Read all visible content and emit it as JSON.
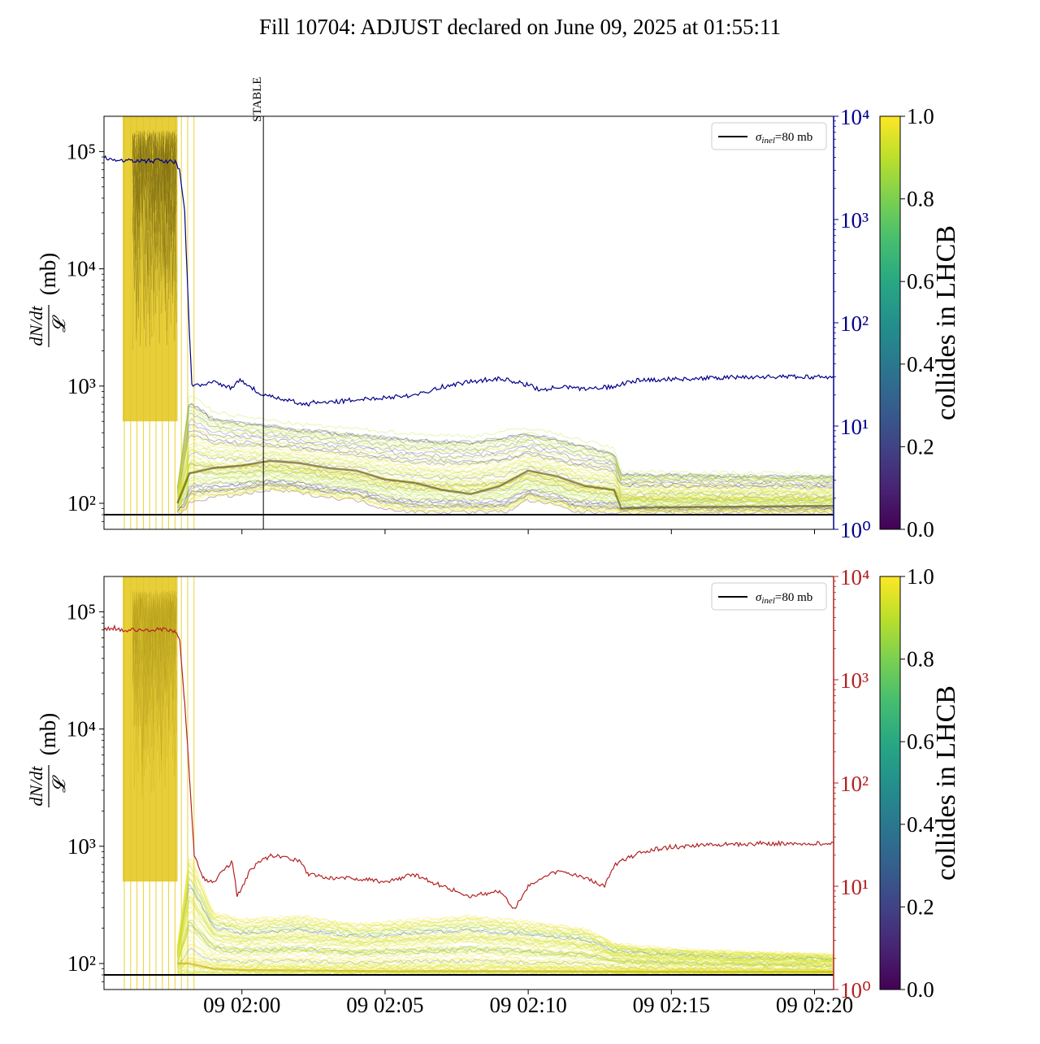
{
  "title": "Fill 10704: ADJUST declared on June 09, 2025 at 01:55:11",
  "chart_data": [
    {
      "type": "line",
      "panel": "top",
      "ylabel_left": "dN/dt / 𝓛 (mb)",
      "ylabel_left_num": "dN/dt",
      "ylabel_left_den": "𝓛",
      "ylabel_left_unit": "(mb)",
      "yscale_left": "log",
      "ylim_left": [
        60,
        200000
      ],
      "yticks_left": [
        {
          "v": 100,
          "label": "10²"
        },
        {
          "v": 1000,
          "label": "10³"
        },
        {
          "v": 10000,
          "label": "10⁴"
        },
        {
          "v": 100000,
          "label": "10⁵"
        }
      ],
      "yscale_right": "log",
      "ylim_right": [
        1,
        10000
      ],
      "right_axis_color": "#00008b",
      "yticks_right": [
        {
          "v": 1,
          "label": "10⁰"
        },
        {
          "v": 10,
          "label": "10¹"
        },
        {
          "v": 100,
          "label": "10²"
        },
        {
          "v": 1000,
          "label": "10³"
        },
        {
          "v": 10000,
          "label": "10⁴"
        }
      ],
      "xlim_minutes": [
        "01:55:11",
        "02:20:40"
      ],
      "x_tick_labels_shown": false,
      "annotation": {
        "label": "STABLE",
        "time": "02:00:45"
      },
      "legend": {
        "label": "σinel=80 mb",
        "sym": "σ",
        "sub": "inel",
        "rest": "=80 mb",
        "placement": "top-right"
      },
      "reference_line": {
        "name": "σinel=80 mb",
        "y": 80,
        "color": "#000000"
      },
      "right_series": {
        "color": "#00008b",
        "points": [
          [
            "01:55:11",
            4000
          ],
          [
            "01:55:30",
            3800
          ],
          [
            "01:56:00",
            3700
          ],
          [
            "01:57:00",
            3700
          ],
          [
            "01:57:40",
            3600
          ],
          [
            "01:57:50",
            3000
          ],
          [
            "01:58:00",
            1200
          ],
          [
            "01:58:05",
            300
          ],
          [
            "01:58:10",
            80
          ],
          [
            "01:58:15",
            25
          ],
          [
            "01:58:30",
            25
          ],
          [
            "01:59:00",
            27
          ],
          [
            "01:59:40",
            23
          ],
          [
            "01:59:50",
            28
          ],
          [
            "02:00:10",
            26
          ],
          [
            "02:00:40",
            20
          ],
          [
            "02:01:30",
            18
          ],
          [
            "02:02:20",
            16
          ],
          [
            "02:02:30",
            17
          ],
          [
            "02:03:00",
            17
          ],
          [
            "02:04:00",
            18
          ],
          [
            "02:05:00",
            19
          ],
          [
            "02:06:00",
            20
          ],
          [
            "02:07:00",
            24
          ],
          [
            "02:08:00",
            27
          ],
          [
            "02:09:00",
            29
          ],
          [
            "02:10:00",
            25
          ],
          [
            "02:10:30",
            22
          ],
          [
            "02:11:00",
            24
          ],
          [
            "02:12:00",
            23
          ],
          [
            "02:13:00",
            24
          ],
          [
            "02:13:30",
            27
          ],
          [
            "02:14:00",
            28
          ],
          [
            "02:16:00",
            29
          ],
          [
            "02:18:00",
            30
          ],
          [
            "02:20:40",
            30
          ]
        ]
      },
      "band_colormap": "viridis",
      "band_median": [
        [
          "01:57:45",
          100
        ],
        [
          "01:58:10",
          180
        ],
        [
          "01:59:00",
          200
        ],
        [
          "02:00:00",
          210
        ],
        [
          "02:01:00",
          230
        ],
        [
          "02:02:00",
          220
        ],
        [
          "02:03:00",
          200
        ],
        [
          "02:04:00",
          190
        ],
        [
          "02:05:00",
          160
        ],
        [
          "02:06:00",
          150
        ],
        [
          "02:07:00",
          130
        ],
        [
          "02:08:00",
          120
        ],
        [
          "02:09:00",
          140
        ],
        [
          "02:10:00",
          190
        ],
        [
          "02:11:00",
          170
        ],
        [
          "02:12:00",
          140
        ],
        [
          "02:13:00",
          130
        ],
        [
          "02:13:15",
          90
        ],
        [
          "02:14:00",
          92
        ],
        [
          "02:20:40",
          95
        ]
      ],
      "band_upper": [
        [
          "01:57:45",
          140
        ],
        [
          "01:58:10",
          900
        ],
        [
          "01:59:00",
          620
        ],
        [
          "02:00:00",
          560
        ],
        [
          "02:01:00",
          520
        ],
        [
          "02:02:00",
          480
        ],
        [
          "02:04:00",
          440
        ],
        [
          "02:06:00",
          400
        ],
        [
          "02:08:00",
          380
        ],
        [
          "02:10:00",
          450
        ],
        [
          "02:11:00",
          400
        ],
        [
          "02:13:00",
          300
        ],
        [
          "02:13:15",
          190
        ],
        [
          "02:20:40",
          180
        ]
      ]
    },
    {
      "type": "line",
      "panel": "bottom",
      "ylabel_left": "dN/dt / 𝓛 (mb)",
      "ylabel_left_num": "dN/dt",
      "ylabel_left_den": "𝓛",
      "ylabel_left_unit": "(mb)",
      "yscale_left": "log",
      "ylim_left": [
        60,
        200000
      ],
      "yticks_left": [
        {
          "v": 100,
          "label": "10²"
        },
        {
          "v": 1000,
          "label": "10³"
        },
        {
          "v": 10000,
          "label": "10⁴"
        },
        {
          "v": 100000,
          "label": "10⁵"
        }
      ],
      "yscale_right": "log",
      "ylim_right": [
        1,
        10000
      ],
      "right_axis_color": "#b22222",
      "yticks_right": [
        {
          "v": 1,
          "label": "10⁰"
        },
        {
          "v": 10,
          "label": "10¹"
        },
        {
          "v": 100,
          "label": "10²"
        },
        {
          "v": 1000,
          "label": "10³"
        },
        {
          "v": 10000,
          "label": "10⁴"
        }
      ],
      "x_tick_labels": [
        {
          "t": "02:00:00",
          "label": "09 02:00"
        },
        {
          "t": "02:05:00",
          "label": "09 02:05"
        },
        {
          "t": "02:10:00",
          "label": "09 02:10"
        },
        {
          "t": "02:15:00",
          "label": "09 02:15"
        },
        {
          "t": "02:20:00",
          "label": "09 02:20"
        }
      ],
      "legend": {
        "label": "σinel=80 mb",
        "sym": "σ",
        "sub": "inel",
        "rest": "=80 mb",
        "placement": "top-right"
      },
      "reference_line": {
        "name": "σinel=80 mb",
        "y": 80,
        "color": "#000000"
      },
      "right_series": {
        "color": "#b22222",
        "points": [
          [
            "01:55:11",
            3000
          ],
          [
            "01:55:30",
            3200
          ],
          [
            "01:56:00",
            3000
          ],
          [
            "01:57:00",
            3100
          ],
          [
            "01:57:40",
            3000
          ],
          [
            "01:57:50",
            2400
          ],
          [
            "01:58:00",
            600
          ],
          [
            "01:58:10",
            120
          ],
          [
            "01:58:20",
            20
          ],
          [
            "01:58:40",
            12
          ],
          [
            "01:59:00",
            11
          ],
          [
            "01:59:20",
            14
          ],
          [
            "01:59:40",
            17
          ],
          [
            "01:59:50",
            8
          ],
          [
            "02:00:20",
            15
          ],
          [
            "02:01:00",
            20
          ],
          [
            "02:02:00",
            18
          ],
          [
            "02:02:20",
            13
          ],
          [
            "02:03:00",
            12
          ],
          [
            "02:04:00",
            12
          ],
          [
            "02:05:00",
            11
          ],
          [
            "02:06:00",
            13
          ],
          [
            "02:07:00",
            10
          ],
          [
            "02:08:00",
            8
          ],
          [
            "02:09:00",
            9
          ],
          [
            "02:09:30",
            6
          ],
          [
            "02:10:00",
            10
          ],
          [
            "02:11:00",
            14
          ],
          [
            "02:12:00",
            12
          ],
          [
            "02:12:40",
            10
          ],
          [
            "02:13:00",
            16
          ],
          [
            "02:14:00",
            22
          ],
          [
            "02:15:00",
            24
          ],
          [
            "02:16:00",
            25
          ],
          [
            "02:18:00",
            26
          ],
          [
            "02:20:40",
            26
          ]
        ]
      },
      "band_colormap": "viridis",
      "band_median": [
        [
          "01:57:45",
          100
        ],
        [
          "01:58:10",
          100
        ],
        [
          "01:59:00",
          90
        ],
        [
          "02:00:00",
          88
        ],
        [
          "02:05:00",
          86
        ],
        [
          "02:10:00",
          86
        ],
        [
          "02:15:00",
          85
        ],
        [
          "02:20:40",
          85
        ]
      ],
      "band_upper": [
        [
          "01:57:45",
          140
        ],
        [
          "01:58:10",
          900
        ],
        [
          "01:59:00",
          280
        ],
        [
          "02:00:00",
          240
        ],
        [
          "02:02:00",
          260
        ],
        [
          "02:04:00",
          220
        ],
        [
          "02:06:00",
          240
        ],
        [
          "02:08:00",
          260
        ],
        [
          "02:10:00",
          230
        ],
        [
          "02:12:00",
          200
        ],
        [
          "02:13:00",
          150
        ],
        [
          "02:14:00",
          140
        ],
        [
          "02:16:00",
          130
        ],
        [
          "02:20:40",
          120
        ]
      ]
    }
  ],
  "colorbar": {
    "label": "collides in LHCB",
    "colormap": "viridis",
    "range": [
      0.0,
      1.0
    ],
    "tick_labels": [
      "0.0",
      "0.2",
      "0.4",
      "0.6",
      "0.8",
      "1.0"
    ]
  }
}
